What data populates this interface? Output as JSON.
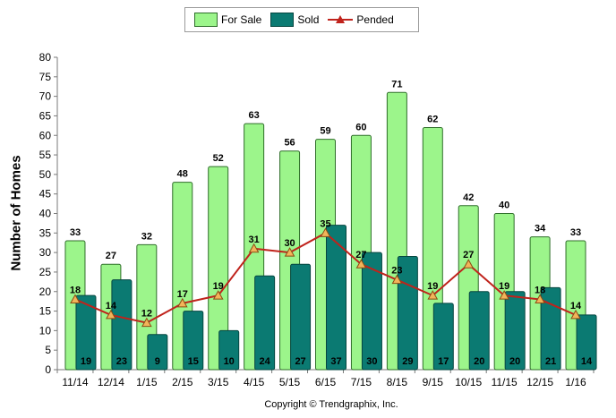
{
  "chart_data": {
    "type": "bar",
    "categories": [
      "11/14",
      "12/14",
      "1/15",
      "2/15",
      "3/15",
      "4/15",
      "5/15",
      "6/15",
      "7/15",
      "8/15",
      "9/15",
      "10/15",
      "11/15",
      "12/15",
      "1/16"
    ],
    "series": [
      {
        "name": "For Sale",
        "type": "bar",
        "color": "#9cf58b",
        "values": [
          33,
          27,
          32,
          48,
          52,
          63,
          56,
          59,
          60,
          71,
          62,
          42,
          40,
          34,
          33
        ]
      },
      {
        "name": "Sold",
        "type": "bar",
        "color": "#0b7a72",
        "values": [
          19,
          23,
          9,
          15,
          10,
          24,
          27,
          37,
          30,
          29,
          17,
          20,
          20,
          21,
          14
        ]
      },
      {
        "name": "Pended",
        "type": "line",
        "color": "#c0231c",
        "values": [
          18,
          14,
          12,
          17,
          19,
          31,
          30,
          35,
          27,
          23,
          19,
          27,
          19,
          18,
          14
        ]
      }
    ],
    "ylabel": "Number of Homes",
    "ylim": [
      0,
      80
    ],
    "yticks": [
      0,
      5,
      10,
      15,
      20,
      25,
      30,
      35,
      40,
      45,
      50,
      55,
      60,
      65,
      70,
      75,
      80
    ],
    "grid": false,
    "legend": "top-center",
    "copyright": "Copyright © Trendgraphix, Inc."
  }
}
